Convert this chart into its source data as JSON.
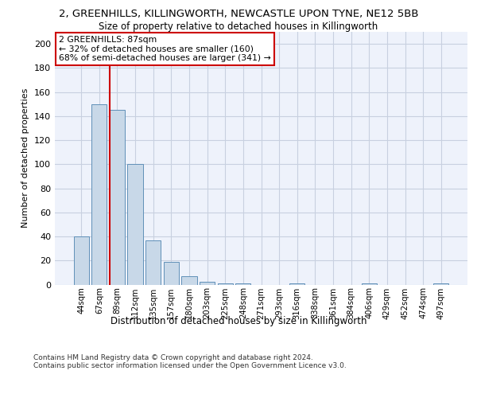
{
  "title_line1": "2, GREENHILLS, KILLINGWORTH, NEWCASTLE UPON TYNE, NE12 5BB",
  "title_line2": "Size of property relative to detached houses in Killingworth",
  "xlabel": "Distribution of detached houses by size in Killingworth",
  "ylabel": "Number of detached properties",
  "categories": [
    "44sqm",
    "67sqm",
    "89sqm",
    "112sqm",
    "135sqm",
    "157sqm",
    "180sqm",
    "203sqm",
    "225sqm",
    "248sqm",
    "271sqm",
    "293sqm",
    "316sqm",
    "338sqm",
    "361sqm",
    "384sqm",
    "406sqm",
    "429sqm",
    "452sqm",
    "474sqm",
    "497sqm"
  ],
  "values": [
    40,
    150,
    145,
    100,
    37,
    19,
    7,
    2,
    1,
    1,
    0,
    0,
    1,
    0,
    0,
    0,
    1,
    0,
    0,
    0,
    1
  ],
  "bar_color": "#c8d8e8",
  "bar_edge_color": "#6090b8",
  "vline_x_index": 1.575,
  "marker_label": "2 GREENHILLS: 87sqm\n← 32% of detached houses are smaller (160)\n68% of semi-detached houses are larger (341) →",
  "vline_color": "#cc0000",
  "box_edge_color": "#cc0000",
  "ylim": [
    0,
    210
  ],
  "yticks": [
    0,
    20,
    40,
    60,
    80,
    100,
    120,
    140,
    160,
    180,
    200
  ],
  "grid_color": "#c8d0e0",
  "footnote": "Contains HM Land Registry data © Crown copyright and database right 2024.\nContains public sector information licensed under the Open Government Licence v3.0.",
  "bg_color": "#eef2fb"
}
